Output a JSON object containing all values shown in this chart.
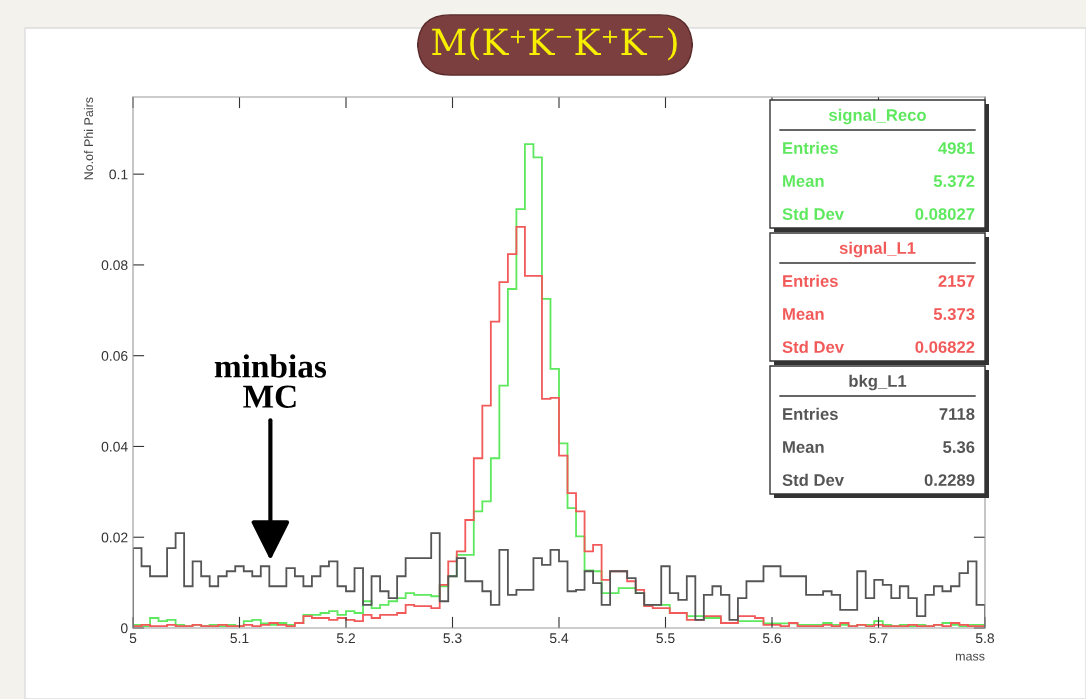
{
  "chart_data": {
    "type": "histogram",
    "title": "M(K⁺K⁻K⁺K⁻)",
    "xlabel": "mass",
    "ylabel": "No.of Phi Pairs",
    "bins": [
      5,
      5.008,
      5.016,
      5.024,
      5.032,
      5.04,
      5.048,
      5.056,
      5.064,
      5.072,
      5.08,
      5.088,
      5.096,
      5.104,
      5.112,
      5.12,
      5.128,
      5.136,
      5.144,
      5.152,
      5.16,
      5.168,
      5.176,
      5.184,
      5.192,
      5.2,
      5.208,
      5.216,
      5.224,
      5.232,
      5.24,
      5.248,
      5.256,
      5.264,
      5.272,
      5.28,
      5.288,
      5.296,
      5.304,
      5.312,
      5.32,
      5.328,
      5.336,
      5.344,
      5.352,
      5.36,
      5.368,
      5.376,
      5.384,
      5.392,
      5.4,
      5.408,
      5.416,
      5.424,
      5.432,
      5.44,
      5.448,
      5.456,
      5.464,
      5.472,
      5.48,
      5.488,
      5.496,
      5.504,
      5.512,
      5.52,
      5.528,
      5.536,
      5.544,
      5.552,
      5.56,
      5.568,
      5.576,
      5.584,
      5.592,
      5.6,
      5.608,
      5.616,
      5.624,
      5.632,
      5.64,
      5.648,
      5.656,
      5.664,
      5.672,
      5.68,
      5.688,
      5.696,
      5.704,
      5.712,
      5.72,
      5.728,
      5.736,
      5.744,
      5.752,
      5.76,
      5.768,
      5.776,
      5.784,
      5.792,
      5.8
    ],
    "series": [
      {
        "name": "bkg_L1",
        "color": "#555555",
        "values": [
          0.0176,
          0.0136,
          0.0114,
          0.0114,
          0.0176,
          0.0209,
          0.0092,
          0.0147,
          0.0114,
          0.0092,
          0.0114,
          0.0125,
          0.0136,
          0.0125,
          0.0114,
          0.0136,
          0.0092,
          0.0092,
          0.0132,
          0.0114,
          0.0092,
          0.0114,
          0.0136,
          0.0147,
          0.0092,
          0.0081,
          0.0132,
          0.0051,
          0.0114,
          0.0081,
          0.0066,
          0.0114,
          0.0154,
          0.0154,
          0.0154,
          0.0209,
          0.0059,
          0.0114,
          0.0154,
          0.0103,
          0.0103,
          0.0081,
          0.0051,
          0.0172,
          0.0073,
          0.0084,
          0.0084,
          0.0154,
          0.0139,
          0.0172,
          0.0147,
          0.0081,
          0.0084,
          0.0125,
          0.0099,
          0.0051,
          0.0125,
          0.0125,
          0.011,
          0.0077,
          0.0051,
          0.0051,
          0.0136,
          0.0077,
          0.0062,
          0.0114,
          0.0018,
          0.0073,
          0.0092,
          0.0073,
          0.0018,
          0.0066,
          0.0103,
          0.0103,
          0.0136,
          0.0136,
          0.0114,
          0.0114,
          0.0114,
          0.0073,
          0.0073,
          0.0081,
          0.0073,
          0.004,
          0.004,
          0.0125,
          0.0066,
          0.0106,
          0.0095,
          0.0066,
          0.0092,
          0.0066,
          0.0026,
          0.0073,
          0.0092,
          0.0081,
          0.0092,
          0.0121,
          0.0147,
          0.0051
        ]
      },
      {
        "name": "signal_L1",
        "color": "#f25a5a",
        "values": [
          0.0004,
          0.0007,
          0.0004,
          0.0004,
          0.0007,
          0.0004,
          0.0004,
          0.0007,
          0.0004,
          0.0004,
          0.0007,
          0.0004,
          0.0004,
          0.0007,
          0.0004,
          0.0007,
          0.0011,
          0.0007,
          0.0004,
          0.0011,
          0.0026,
          0.0022,
          0.0022,
          0.0018,
          0.0022,
          0.0018,
          0.0015,
          0.0029,
          0.0022,
          0.0029,
          0.0029,
          0.0033,
          0.0051,
          0.0048,
          0.0048,
          0.0044,
          0.0095,
          0.0147,
          0.0169,
          0.0238,
          0.0374,
          0.049,
          0.0675,
          0.0762,
          0.0824,
          0.0884,
          0.0776,
          0.0776,
          0.0505,
          0.0507,
          0.038,
          0.0297,
          0.0257,
          0.0169,
          0.0183,
          0.0106,
          0.0125,
          0.0125,
          0.0103,
          0.0084,
          0.0048,
          0.0044,
          0.0044,
          0.0033,
          0.0033,
          0.0018,
          0.0018,
          0.0026,
          0.0026,
          0.0011,
          0.0011,
          0.0026,
          0.0026,
          0.0022,
          0.0007,
          0.0007,
          0.0004,
          0.0011,
          0.0004,
          0.0004,
          0.0004,
          0.0007,
          0.0004,
          0.0011,
          0.0004,
          0.0007,
          0.0004,
          0.0007,
          0.0004,
          0.0004,
          0.0004,
          0.0007,
          0.0004,
          0.0004,
          0.0007,
          0.0004,
          0.0011,
          0.0007,
          0.0004,
          0.0004
        ]
      },
      {
        "name": "signal_Reco",
        "color": "#5ee85e",
        "values": [
          0.0007,
          0.0004,
          0.0022,
          0.0015,
          0.0018,
          0.0007,
          0.0004,
          0.0007,
          0.0004,
          0.0007,
          0.0004,
          0.0007,
          0.0004,
          0.0015,
          0.0018,
          0.001,
          0.0007,
          0.0011,
          0.0007,
          0.0011,
          0.0029,
          0.0029,
          0.0033,
          0.0037,
          0.0029,
          0.0037,
          0.0033,
          0.0059,
          0.0044,
          0.0051,
          0.0059,
          0.0066,
          0.0077,
          0.0073,
          0.0073,
          0.007,
          0.0092,
          0.0114,
          0.0161,
          0.0161,
          0.0257,
          0.0279,
          0.0374,
          0.0534,
          0.0747,
          0.0923,
          0.1066,
          0.1037,
          0.0725,
          0.0571,
          0.0407,
          0.0264,
          0.0202,
          0.0127,
          0.0125,
          0.0077,
          0.0077,
          0.0088,
          0.0088,
          0.0077,
          0.0051,
          0.0051,
          0.0051,
          0.0033,
          0.0033,
          0.0026,
          0.0026,
          0.0022,
          0.0022,
          0.0011,
          0.0011,
          0.0015,
          0.0015,
          0.0015,
          0.001,
          0.001,
          0.001,
          0.001,
          0.0007,
          0.0007,
          0.0007,
          0.0011,
          0.0007,
          0.0007,
          0.0004,
          0.0007,
          0.0007,
          0.0015,
          0.0007,
          0.0004,
          0.0007,
          0.0004,
          0.0007,
          0.0004,
          0.0007,
          0.0011,
          0.0007,
          0.0004,
          0.0007,
          0.0007
        ]
      }
    ],
    "xlim": [
      5,
      5.8
    ],
    "xticks": [
      5,
      5.1,
      5.2,
      5.3,
      5.4,
      5.5,
      5.6,
      5.7,
      5.8
    ],
    "ylim": [
      0,
      0.117
    ],
    "yticks": [
      0,
      0.02,
      0.04,
      0.06,
      0.08,
      0.1
    ],
    "grid": false,
    "legend": "top right",
    "annotations": [
      {
        "text": "minbias\nMC",
        "x": 5.129,
        "y": 0.0143
      },
      "Entries 4981",
      "Mean 5.372",
      "Std Dev 0.08027",
      "Entries 2157",
      "Mean 5.373",
      "Std Dev 0.06822",
      "Entries 7118",
      "Mean 5.36",
      "Std Dev 0.2289"
    ]
  }
}
